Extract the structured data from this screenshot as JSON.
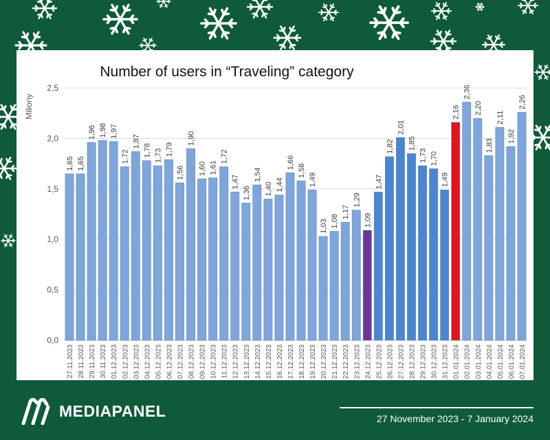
{
  "footer": {
    "brand": "MEDIAPANEL",
    "date_range": "27 November 2023  -  7 January 2024"
  },
  "colors": {
    "background": "#0e5a3a",
    "bar_default": "#7ea6dc",
    "bar_highlight_period": "#4c86d2",
    "bar_christmas_eve": "#6f3596",
    "bar_new_year": "#e8101a"
  },
  "icons": [
    "snowflake-icon",
    "mediapanel-logo-icon"
  ],
  "chart_data": {
    "type": "bar",
    "title": "Number of users in “Traveling” category",
    "ylabel": "Miliony",
    "xlabel": "",
    "ylim": [
      0,
      2.5
    ],
    "yticks": [
      "0,0",
      "0,5",
      "1,0",
      "1,5",
      "2,0",
      "2,5"
    ],
    "grid": true,
    "categories": [
      "27.11.2023",
      "28.11.2023",
      "29.11.2023",
      "30.11.2023",
      "01.12.2023",
      "02.12.2023",
      "03.12.2023",
      "04.12.2023",
      "05.12.2023",
      "06.12.2023",
      "07.12.2023",
      "08.12.2023",
      "09.12.2023",
      "10.12.2023",
      "11.12.2023",
      "12.12.2023",
      "13.12.2023",
      "14.12.2023",
      "15.12.2023",
      "16.12.2023",
      "17.12.2023",
      "18.12.2023",
      "19.12.2023",
      "20.12.2023",
      "21.12.2023",
      "22.12.2023",
      "23.12.2023",
      "24.12.2023",
      "25.12.2023",
      "26.12.2023",
      "27.12.2023",
      "28.12.2023",
      "29.12.2023",
      "30.12.2023",
      "31.12.2023",
      "01.01.2024",
      "02.01.2024",
      "03.01.2024",
      "04.01.2024",
      "05.01.2024",
      "06.01.2024",
      "07.01.2024"
    ],
    "values": [
      1.65,
      1.65,
      1.96,
      1.98,
      1.97,
      1.72,
      1.87,
      1.78,
      1.73,
      1.79,
      1.56,
      1.9,
      1.6,
      1.61,
      1.72,
      1.47,
      1.36,
      1.54,
      1.4,
      1.44,
      1.66,
      1.58,
      1.49,
      1.03,
      1.08,
      1.17,
      1.29,
      1.09,
      1.47,
      1.82,
      2.01,
      1.85,
      1.73,
      1.7,
      1.49,
      2.16,
      2.36,
      2.2,
      1.83,
      2.11,
      1.92,
      2.26
    ],
    "value_labels": [
      "1,65",
      "1,65",
      "1,96",
      "1,98",
      "1,97",
      "1,72",
      "1,87",
      "1,78",
      "1,73",
      "1,79",
      "1,56",
      "1,90",
      "1,60",
      "1,61",
      "1,72",
      "1,47",
      "1,36",
      "1,54",
      "1,40",
      "1,44",
      "1,66",
      "1,58",
      "1,49",
      "1,03",
      "1,08",
      "1,17",
      "1,29",
      "1,09",
      "1,47",
      "1,82",
      "2,01",
      "1,85",
      "1,73",
      "1,70",
      "1,49",
      "2,16",
      "2,36",
      "2,20",
      "1,83",
      "2,11",
      "1,92",
      "2,26"
    ],
    "bar_colors": [
      "#7ea6dc",
      "#7ea6dc",
      "#7ea6dc",
      "#7ea6dc",
      "#7ea6dc",
      "#7ea6dc",
      "#7ea6dc",
      "#7ea6dc",
      "#7ea6dc",
      "#7ea6dc",
      "#7ea6dc",
      "#7ea6dc",
      "#7ea6dc",
      "#7ea6dc",
      "#7ea6dc",
      "#7ea6dc",
      "#7ea6dc",
      "#7ea6dc",
      "#7ea6dc",
      "#7ea6dc",
      "#7ea6dc",
      "#7ea6dc",
      "#7ea6dc",
      "#7ea6dc",
      "#7ea6dc",
      "#7ea6dc",
      "#7ea6dc",
      "#6f3596",
      "#4c86d2",
      "#4c86d2",
      "#4c86d2",
      "#4c86d2",
      "#4c86d2",
      "#4c86d2",
      "#4c86d2",
      "#e8101a",
      "#7ea6dc",
      "#7ea6dc",
      "#7ea6dc",
      "#7ea6dc",
      "#7ea6dc",
      "#7ea6dc"
    ]
  }
}
